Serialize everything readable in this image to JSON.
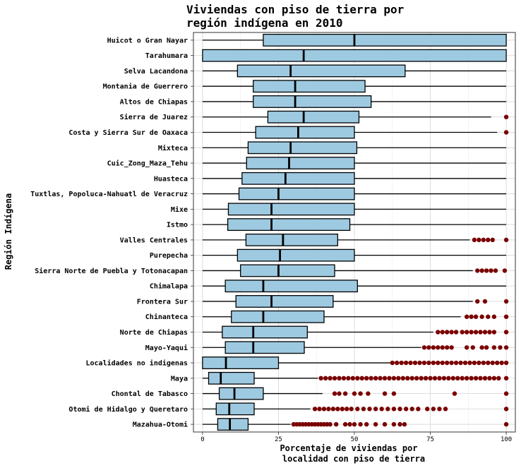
{
  "colors": {
    "box_fill": "#9ecae1",
    "outlier": "#7a0000",
    "grid": "#d9d9d9",
    "panel_border": "#333333"
  },
  "chart_data": {
    "type": "boxplot",
    "orientation": "horizontal",
    "title": [
      "Viviendas con piso de tierra por",
      "región indígena en 2010"
    ],
    "xlabel": [
      "Porcentaje de viviendas por",
      "localidad con piso de tierra"
    ],
    "ylabel": "Región Indígena",
    "xlim": [
      -3,
      103
    ],
    "xticks": [
      0,
      25,
      50,
      75,
      100
    ],
    "grid": true,
    "categories": [
      {
        "name": "Huicot o Gran Nayar",
        "whisker_low": 0,
        "q1": 20,
        "median": 50,
        "q3": 100,
        "whisker_high": 100,
        "outliers": []
      },
      {
        "name": "Tarahumara",
        "whisker_low": 0,
        "q1": 0,
        "median": 33.3,
        "q3": 100,
        "whisker_high": 100,
        "outliers": []
      },
      {
        "name": "Selva Lacandona",
        "whisker_low": 0,
        "q1": 11.5,
        "median": 29,
        "q3": 66.7,
        "whisker_high": 100,
        "outliers": []
      },
      {
        "name": "Montania de Guerrero",
        "whisker_low": 0,
        "q1": 16.7,
        "median": 30.5,
        "q3": 53.5,
        "whisker_high": 100,
        "outliers": []
      },
      {
        "name": "Altos de Chiapas",
        "whisker_low": 0,
        "q1": 16.7,
        "median": 30.5,
        "q3": 55.5,
        "whisker_high": 100,
        "outliers": []
      },
      {
        "name": "Sierra de Juarez",
        "whisker_low": 0,
        "q1": 21.5,
        "median": 33.3,
        "q3": 51.5,
        "whisker_high": 95,
        "outliers": [
          100
        ]
      },
      {
        "name": "Costa y Sierra Sur de Oaxaca",
        "whisker_low": 0,
        "q1": 17.5,
        "median": 31.5,
        "q3": 50,
        "whisker_high": 97,
        "outliers": [
          100
        ]
      },
      {
        "name": "Mixteca",
        "whisker_low": 0,
        "q1": 15,
        "median": 29,
        "q3": 50.8,
        "whisker_high": 100,
        "outliers": []
      },
      {
        "name": "Cuic_Zong_Maza_Tehu",
        "whisker_low": 0,
        "q1": 14.5,
        "median": 28.5,
        "q3": 50,
        "whisker_high": 100,
        "outliers": []
      },
      {
        "name": "Huasteca",
        "whisker_low": 0,
        "q1": 13,
        "median": 27.3,
        "q3": 50,
        "whisker_high": 100,
        "outliers": []
      },
      {
        "name": "Tuxtlas, Popoluca-Nahuatl de Veracruz",
        "whisker_low": 0,
        "q1": 12,
        "median": 25,
        "q3": 50,
        "whisker_high": 100,
        "outliers": []
      },
      {
        "name": "Mixe",
        "whisker_low": 0,
        "q1": 8.5,
        "median": 22.7,
        "q3": 50,
        "whisker_high": 100,
        "outliers": []
      },
      {
        "name": "Istmo",
        "whisker_low": 0,
        "q1": 8.3,
        "median": 22.7,
        "q3": 48.5,
        "whisker_high": 100,
        "outliers": []
      },
      {
        "name": "Valles Centrales",
        "whisker_low": 0,
        "q1": 14.3,
        "median": 26.5,
        "q3": 44.5,
        "whisker_high": 88,
        "outliers": [
          89.5,
          91,
          92.5,
          94,
          95.5,
          100
        ]
      },
      {
        "name": "Purepecha",
        "whisker_low": 0,
        "q1": 11.5,
        "median": 25.5,
        "q3": 50,
        "whisker_high": 100,
        "outliers": []
      },
      {
        "name": "Sierra Norte de Puebla y Totonacapan",
        "whisker_low": 0,
        "q1": 12.5,
        "median": 25,
        "q3": 43.5,
        "whisker_high": 89,
        "outliers": [
          90.5,
          92,
          93.5,
          95,
          96.5,
          99.5
        ]
      },
      {
        "name": "Chimalapa",
        "whisker_low": 0,
        "q1": 7.5,
        "median": 20,
        "q3": 51,
        "whisker_high": 100,
        "outliers": []
      },
      {
        "name": "Frontera Sur",
        "whisker_low": 0,
        "q1": 11,
        "median": 22.7,
        "q3": 43,
        "whisker_high": 89,
        "outliers": [
          90.5,
          93,
          100
        ]
      },
      {
        "name": "Chinanteca",
        "whisker_low": 0,
        "q1": 9.5,
        "median": 20,
        "q3": 40,
        "whisker_high": 85,
        "outliers": [
          87,
          88.5,
          90,
          92,
          94,
          96,
          100
        ]
      },
      {
        "name": "Norte de Chiapas",
        "whisker_low": 0,
        "q1": 6.5,
        "median": 16.7,
        "q3": 34.5,
        "whisker_high": 76,
        "outliers": [
          77.5,
          79,
          80.5,
          82,
          83.5,
          85.5,
          87,
          88.5,
          90,
          91.5,
          93,
          94.5,
          96,
          100
        ]
      },
      {
        "name": "Mayo-Yaqui",
        "whisker_low": 0,
        "q1": 7.5,
        "median": 16.7,
        "q3": 33.5,
        "whisker_high": 72,
        "outliers": [
          73,
          74.5,
          76,
          77.5,
          79,
          80.5,
          82,
          87,
          89,
          92,
          93.5,
          96,
          98,
          100
        ]
      },
      {
        "name": "Localidades no indigenas",
        "whisker_low": 0,
        "q1": 0,
        "median": 7.7,
        "q3": 25,
        "whisker_high": 62,
        "outliers": [
          62.5,
          64,
          65.5,
          67,
          68.5,
          70,
          71.5,
          73,
          74.5,
          76,
          77.5,
          79,
          80.5,
          82,
          83.5,
          85,
          86.5,
          88,
          89.5,
          91,
          92.5,
          94,
          95.5,
          97,
          98.5,
          100
        ]
      },
      {
        "name": "Maya",
        "whisker_low": 0,
        "q1": 2,
        "median": 6,
        "q3": 17,
        "whisker_high": 38,
        "outliers": [
          39,
          40.5,
          42,
          43.5,
          45,
          46.5,
          48,
          49.5,
          51,
          52.5,
          54,
          55.5,
          57,
          58.5,
          60,
          61.5,
          63,
          64.5,
          66,
          67.5,
          69,
          70.5,
          72,
          73.5,
          75,
          76.5,
          78,
          79.5,
          81,
          82.5,
          84,
          85.5,
          87,
          88.5,
          90,
          91.5,
          93,
          94.5,
          96,
          97.5,
          100
        ]
      },
      {
        "name": "Chontal de Tabasco",
        "whisker_low": 0,
        "q1": 5.5,
        "median": 10.5,
        "q3": 20,
        "whisker_high": 39.5,
        "outliers": [
          43.5,
          45,
          47,
          50,
          52,
          54.5,
          60,
          63,
          83,
          100
        ]
      },
      {
        "name": "Otomi de Hidalgo y Queretaro",
        "whisker_low": 0,
        "q1": 4.5,
        "median": 8.8,
        "q3": 17,
        "whisker_high": 35.5,
        "outliers": [
          37,
          38.5,
          40,
          41.5,
          43,
          44.5,
          46,
          47.5,
          49,
          51,
          53,
          55,
          57,
          59,
          61,
          63,
          65,
          67,
          69,
          71,
          74,
          76,
          78,
          80,
          100
        ]
      },
      {
        "name": "Mazahua-Otomi",
        "whisker_low": 0,
        "q1": 5,
        "median": 9,
        "q3": 15,
        "whisker_high": 29,
        "outliers": [
          30,
          31,
          32,
          33,
          34,
          35,
          36,
          37,
          38,
          39,
          40,
          41,
          42,
          44,
          47,
          48.5,
          50,
          52,
          54,
          57,
          60,
          63,
          65,
          66.5,
          100
        ]
      }
    ]
  }
}
